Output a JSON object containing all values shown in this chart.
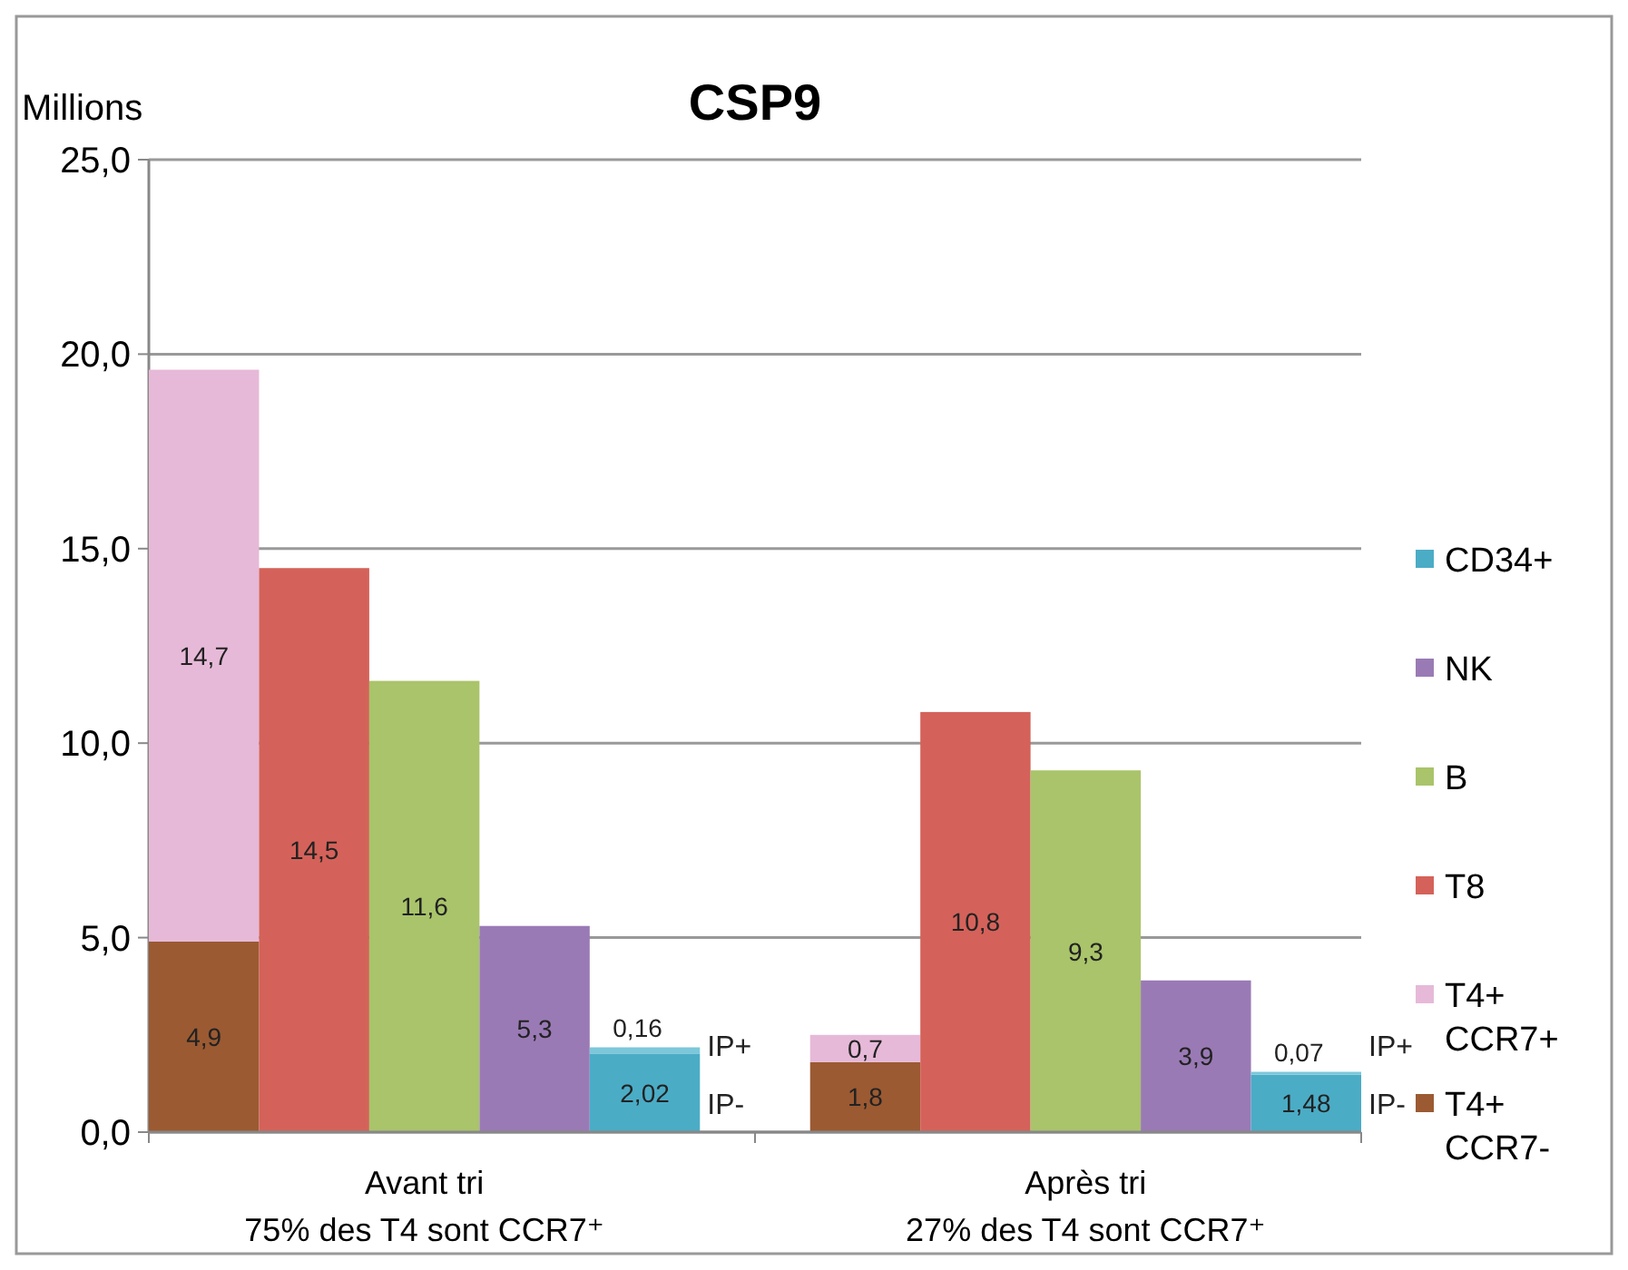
{
  "chart_data": {
    "type": "bar",
    "title": "CSP9",
    "ylabel": "Millions",
    "stacked": true,
    "categories": [
      null,
      null,
      "Avant tri\n75% des T4 sont CCR7⁺",
      null,
      null,
      null,
      null,
      null,
      "Après tri\n27% des T4 sont CCR7⁺",
      null,
      null
    ],
    "series": [
      {
        "name": "T4+ CCR7-",
        "color": "#9b5a32",
        "values": [
          4.9,
          null,
          null,
          null,
          null,
          null,
          1.8,
          null,
          null,
          null,
          null
        ],
        "value_labels": [
          "4,9",
          null,
          null,
          null,
          null,
          null,
          "1,8",
          null,
          null,
          null,
          null
        ]
      },
      {
        "name": "T4+ CCR7+",
        "color": "#e6b9d8",
        "values": [
          14.7,
          null,
          null,
          null,
          null,
          null,
          0.7,
          null,
          null,
          null,
          null
        ],
        "value_labels": [
          "14,7",
          null,
          null,
          null,
          null,
          null,
          "0,7",
          null,
          null,
          null,
          null
        ]
      },
      {
        "name": "T8",
        "color": "#d4625a",
        "values": [
          null,
          14.5,
          null,
          null,
          null,
          null,
          null,
          10.8,
          null,
          null,
          null
        ],
        "value_labels": [
          null,
          "14,5",
          null,
          null,
          null,
          null,
          null,
          "10,8",
          null,
          null,
          null
        ]
      },
      {
        "name": "B",
        "color": "#a9c46a",
        "values": [
          null,
          null,
          11.6,
          null,
          null,
          null,
          null,
          null,
          9.3,
          null,
          null
        ],
        "value_labels": [
          null,
          null,
          "11,6",
          null,
          null,
          null,
          null,
          null,
          "9,3",
          null,
          null
        ]
      },
      {
        "name": "NK",
        "color": "#9a7ab5",
        "values": [
          null,
          null,
          null,
          5.3,
          null,
          null,
          null,
          null,
          null,
          3.9,
          null
        ],
        "value_labels": [
          null,
          null,
          null,
          "5,3",
          null,
          null,
          null,
          null,
          null,
          "3,9",
          null
        ]
      },
      {
        "name": "CD34+",
        "color": "#4bacc6",
        "values": [
          null,
          null,
          null,
          null,
          2.02,
          null,
          null,
          null,
          null,
          null,
          1.48
        ],
        "value_labels": [
          null,
          null,
          null,
          null,
          "2,02",
          null,
          null,
          null,
          null,
          null,
          "1,48"
        ]
      },
      {
        "color": "#7cc7da",
        "values": [
          null,
          null,
          null,
          null,
          0.16,
          null,
          null,
          null,
          null,
          null,
          0.07
        ],
        "value_labels": [
          null,
          null,
          null,
          null,
          "0,16",
          null,
          null,
          null,
          null,
          null,
          "0,07"
        ]
      }
    ],
    "ylim": [
      0,
      25
    ],
    "yticks": [
      {
        "value": 0,
        "label": "0,0"
      },
      {
        "value": 5,
        "label": "5,0"
      },
      {
        "value": 10,
        "label": "10,0"
      },
      {
        "value": 15,
        "label": "15,0"
      },
      {
        "value": 20,
        "label": "20,0"
      },
      {
        "value": 25,
        "label": "25,0"
      }
    ],
    "grid": "y",
    "legend": "right",
    "annotations": [
      "IP+",
      "IP-",
      "IP+",
      "IP-"
    ]
  }
}
